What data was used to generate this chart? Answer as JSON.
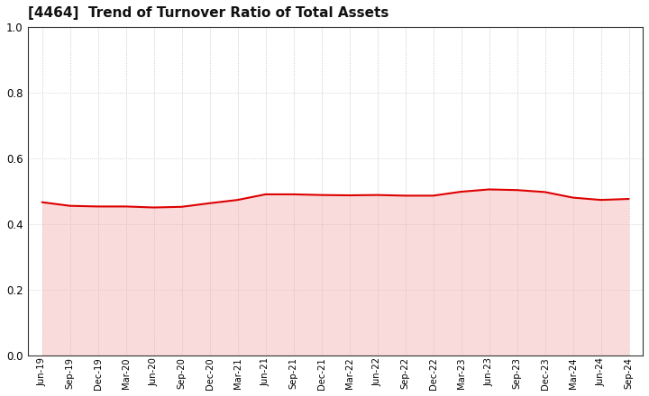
{
  "title": "[4464]  Trend of Turnover Ratio of Total Assets",
  "title_fontsize": 11,
  "line_color": "#dd0000",
  "fill_color": "#f5b0b0",
  "fill_alpha": 0.45,
  "line_width": 1.5,
  "background_color": "#ffffff",
  "grid_color_dot": "#bbbbbb",
  "grid_color_line": "#cccccc",
  "ylim": [
    0.0,
    1.0
  ],
  "yticks": [
    0.0,
    0.2,
    0.4,
    0.6,
    0.8,
    1.0
  ],
  "labels": [
    "Jun-19",
    "Sep-19",
    "Dec-19",
    "Mar-20",
    "Jun-20",
    "Sep-20",
    "Dec-20",
    "Mar-21",
    "Jun-21",
    "Sep-21",
    "Dec-21",
    "Mar-22",
    "Jun-22",
    "Sep-22",
    "Dec-22",
    "Mar-23",
    "Jun-23",
    "Sep-23",
    "Dec-23",
    "Mar-24",
    "Jun-24",
    "Sep-24"
  ],
  "values": [
    0.466,
    0.455,
    0.453,
    0.453,
    0.45,
    0.452,
    0.463,
    0.473,
    0.49,
    0.49,
    0.488,
    0.487,
    0.488,
    0.486,
    0.486,
    0.498,
    0.505,
    0.503,
    0.497,
    0.48,
    0.473,
    0.476
  ]
}
